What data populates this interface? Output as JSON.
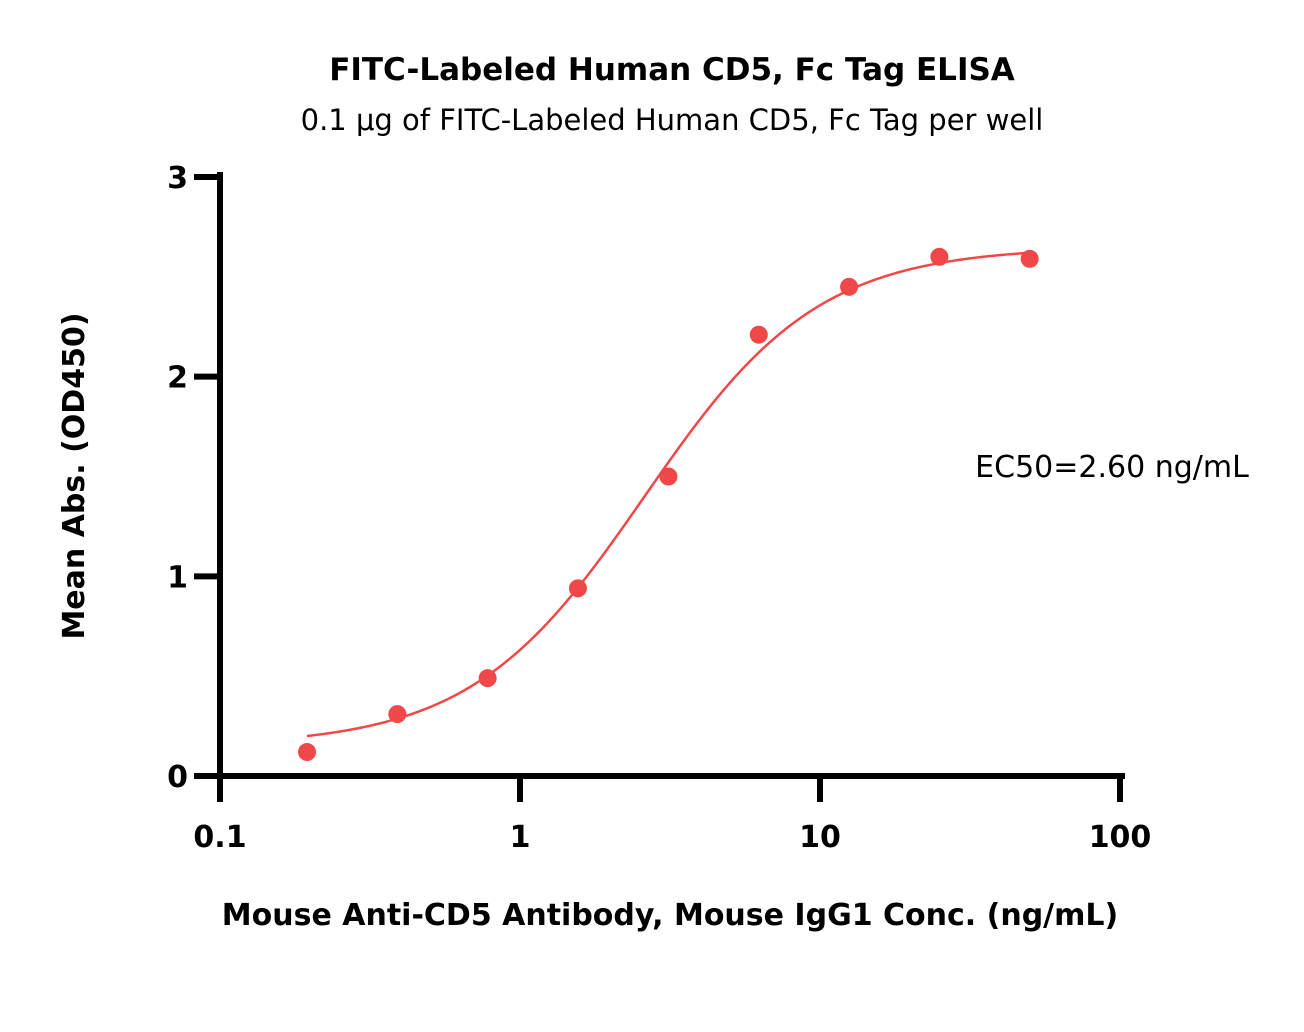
{
  "chart_data": {
    "type": "scatter",
    "title": "FITC-Labeled Human CD5, Fc Tag ELISA",
    "subtitle": "0.1 μg of FITC-Labeled Human CD5, Fc Tag per well",
    "xlabel": "Mouse Anti-CD5 Antibody, Mouse IgG1 Conc. (ng/mL)",
    "ylabel": "Mean Abs. (OD450)",
    "x_scale": "log",
    "xlim": [
      0.1,
      100
    ],
    "ylim": [
      0,
      3
    ],
    "x_ticks": [
      "0.1",
      "1",
      "10",
      "100"
    ],
    "y_ticks": [
      "0",
      "1",
      "2",
      "3"
    ],
    "grid": false,
    "annotation": "EC50=2.60 ng/mL",
    "color": "#f04848",
    "series": [
      {
        "x": [
          0.195,
          0.39,
          0.78,
          1.56,
          3.125,
          6.25,
          12.5,
          25,
          50
        ],
        "y": [
          0.12,
          0.31,
          0.49,
          0.94,
          1.5,
          2.21,
          2.45,
          2.6,
          2.59
        ]
      }
    ],
    "fit": {
      "type": "4PL",
      "bottom": 0.15,
      "top": 2.65,
      "ec50": 2.6,
      "hill": 1.5,
      "x_range": [
        0.195,
        50
      ]
    }
  }
}
